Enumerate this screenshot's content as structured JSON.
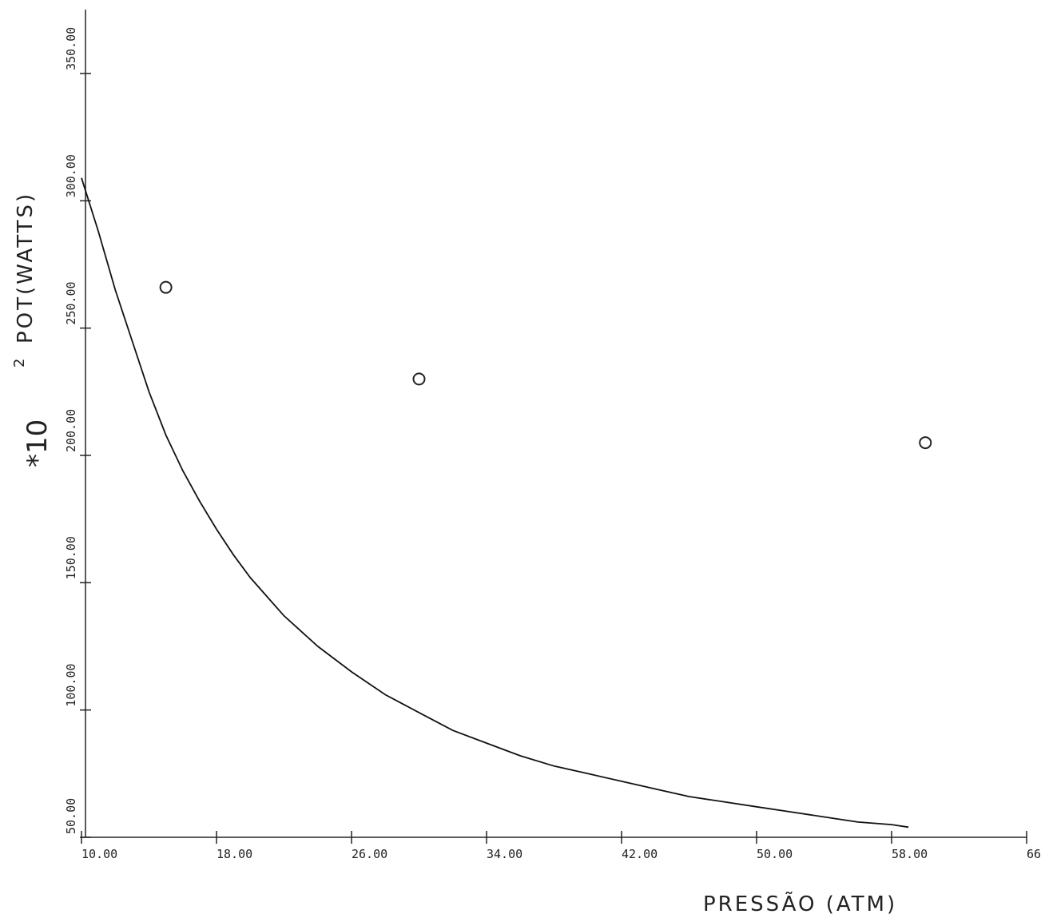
{
  "chart_data": {
    "type": "line",
    "xlabel": "PRESSÃO (ATM)",
    "ylabel": "POT(WATTS)",
    "y_multiplier": "*10",
    "y_exponent": "2",
    "xlim": [
      10,
      66
    ],
    "ylim": [
      50,
      350
    ],
    "x_ticks": [
      10,
      18,
      26,
      34,
      42,
      50,
      58,
      66
    ],
    "x_tick_labels": [
      "10.00",
      "18.00",
      "26.00",
      "34.00",
      "42.00",
      "50.00",
      "58.00",
      "66.00"
    ],
    "y_ticks": [
      50,
      100,
      150,
      200,
      250,
      300,
      350
    ],
    "y_tick_labels": [
      "50.00",
      "100.00",
      "150.00",
      "200.00",
      "250.00",
      "300.00",
      "350.00"
    ],
    "grid": false,
    "series": [
      {
        "style": "line",
        "x": [
          10,
          11,
          12,
          13,
          14,
          15,
          16,
          17,
          18,
          19,
          20,
          22,
          24,
          26,
          28,
          30,
          32,
          34,
          36,
          38,
          40,
          42,
          44,
          46,
          48,
          50,
          52,
          54,
          56,
          58,
          59
        ],
        "y": [
          309,
          288,
          265,
          245,
          225,
          208,
          194,
          182,
          171,
          161,
          152,
          137,
          125,
          115,
          106,
          99,
          92,
          87,
          82,
          78,
          75,
          72,
          69,
          66,
          64,
          62,
          60,
          58,
          56,
          55,
          54
        ]
      },
      {
        "style": "markers",
        "marker": "circle",
        "x": [
          15,
          30,
          60
        ],
        "y": [
          266,
          230,
          205
        ]
      }
    ]
  }
}
